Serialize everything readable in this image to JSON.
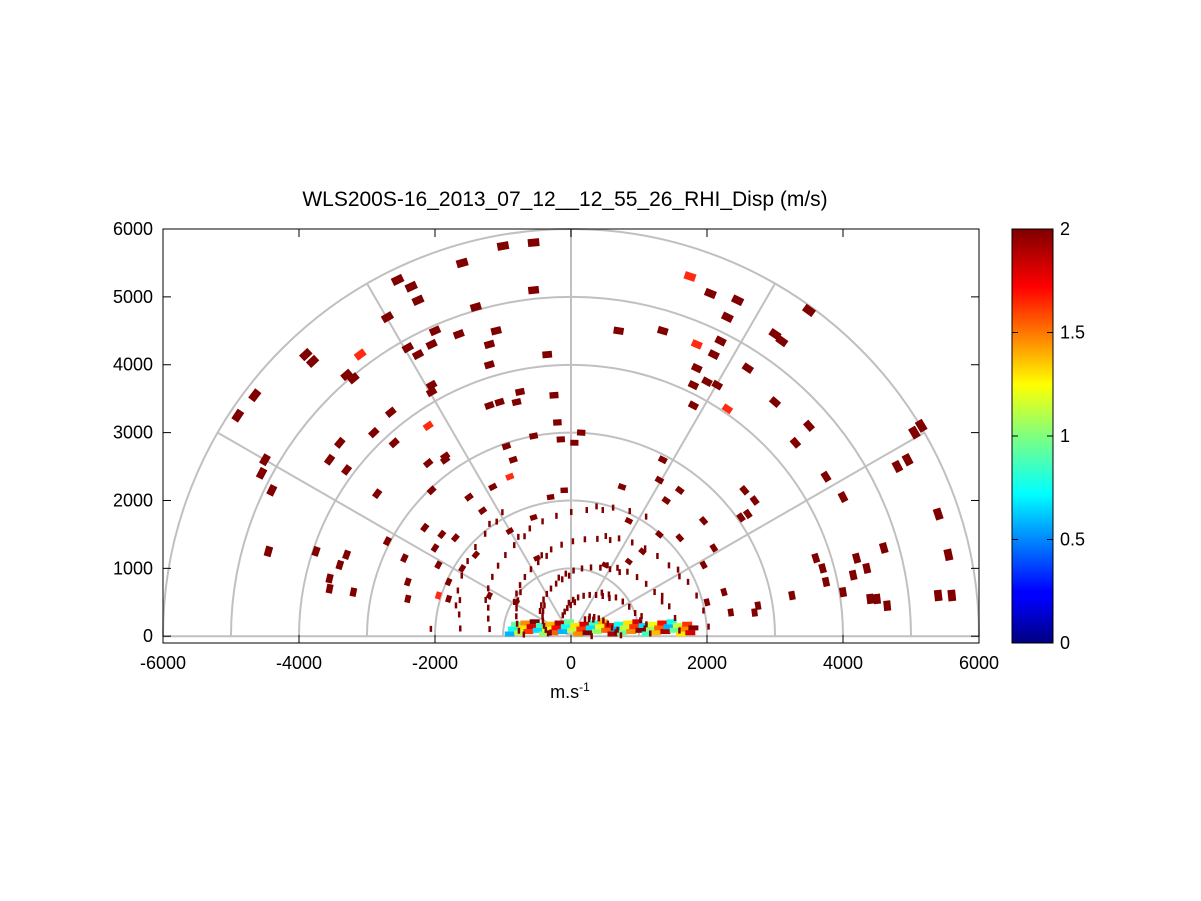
{
  "colors": {
    "grid": "#c0c0c0",
    "axes": "#000000",
    "dark_red": "#800000",
    "red": "#ff2a10"
  },
  "chart_data": {
    "type": "polar-rhi",
    "title": "WLS200S-16_2013_07_12__12_55_26_RHI_Disp (m/s)",
    "xlabel_base": "m.s",
    "xlabel_exp": "-1",
    "xlim": [
      -6000,
      6000
    ],
    "ylim": [
      -100,
      6000
    ],
    "xticks": [
      "-6000",
      "-4000",
      "-2000",
      "0",
      "2000",
      "4000",
      "6000"
    ],
    "yticks": [
      "0",
      "1000",
      "2000",
      "3000",
      "4000",
      "5000",
      "6000"
    ],
    "polar_grid_radii": [
      1000,
      2000,
      3000,
      4000,
      5000,
      6000
    ],
    "polar_grid_angles_deg": [
      0,
      30,
      60,
      90,
      120,
      150,
      180
    ],
    "colorbar": {
      "min": 0,
      "max": 2,
      "ticks": [
        "0",
        "0.5",
        "1",
        "1.5",
        "2"
      ],
      "colormap": "jet"
    },
    "ground_returns": {
      "x_range": [
        -900,
        1800
      ],
      "y_range": [
        40,
        220
      ],
      "values_range": [
        0.6,
        2.0
      ]
    },
    "points": [
      [
        -4900,
        3250,
        2
      ],
      [
        -4650,
        3550,
        2
      ],
      [
        -4500,
        2600,
        2
      ],
      [
        -4550,
        2400,
        2
      ],
      [
        -4400,
        2150,
        2
      ],
      [
        -4450,
        1250,
        2
      ],
      [
        -3900,
        4150,
        2
      ],
      [
        -3800,
        4050,
        2
      ],
      [
        -3300,
        3850,
        2
      ],
      [
        -3100,
        4150,
        1.8
      ],
      [
        -3200,
        3800,
        2
      ],
      [
        -3400,
        2850,
        2
      ],
      [
        -3550,
        2600,
        2
      ],
      [
        -3300,
        2450,
        2
      ],
      [
        -3750,
        1250,
        2
      ],
      [
        -3300,
        1200,
        2
      ],
      [
        -3400,
        1050,
        2
      ],
      [
        -3550,
        850,
        2
      ],
      [
        -3550,
        700,
        2
      ],
      [
        -3200,
        650,
        2
      ],
      [
        -2900,
        3000,
        2
      ],
      [
        -2650,
        3300,
        2
      ],
      [
        -2600,
        2850,
        2
      ],
      [
        -2850,
        2100,
        2
      ],
      [
        -2700,
        1400,
        2
      ],
      [
        -2450,
        1150,
        2
      ],
      [
        -2400,
        800,
        2
      ],
      [
        -2400,
        550,
        2
      ],
      [
        -2700,
        4700,
        2
      ],
      [
        -2550,
        5250,
        2
      ],
      [
        -2350,
        5150,
        2
      ],
      [
        -2250,
        4950,
        2
      ],
      [
        -2400,
        4250,
        2
      ],
      [
        -2250,
        4150,
        2
      ],
      [
        -2050,
        4300,
        2
      ],
      [
        -2000,
        4500,
        2
      ],
      [
        -2050,
        3700,
        2
      ],
      [
        -2050,
        3600,
        2
      ],
      [
        -2100,
        3100,
        1.8
      ],
      [
        -1850,
        2600,
        2
      ],
      [
        -2100,
        2550,
        2
      ],
      [
        -2050,
        2150,
        2
      ],
      [
        -2150,
        1600,
        2
      ],
      [
        -1900,
        1500,
        2
      ],
      [
        -2000,
        1300,
        2
      ],
      [
        -1950,
        1050,
        2
      ],
      [
        -1600,
        5500,
        2
      ],
      [
        -1400,
        4850,
        2
      ],
      [
        -1650,
        4450,
        2
      ],
      [
        -1100,
        4500,
        2
      ],
      [
        -1200,
        4300,
        2
      ],
      [
        -1200,
        4000,
        2
      ],
      [
        -1200,
        3400,
        2
      ],
      [
        -1050,
        3450,
        2
      ],
      [
        -1150,
        2200,
        2
      ],
      [
        -850,
        2600,
        2
      ],
      [
        -950,
        2800,
        2
      ],
      [
        -750,
        3600,
        2
      ],
      [
        -800,
        3450,
        2
      ],
      [
        -550,
        2950,
        2
      ],
      [
        -500,
        1150,
        2
      ],
      [
        -1400,
        1200,
        2
      ],
      [
        -900,
        1550,
        2
      ],
      [
        -550,
        1750,
        2
      ],
      [
        -1000,
        5750,
        2
      ],
      [
        -550,
        5800,
        2
      ],
      [
        -550,
        5100,
        2
      ],
      [
        -350,
        4150,
        2
      ],
      [
        -250,
        3550,
        2
      ],
      [
        -200,
        3150,
        2
      ],
      [
        -100,
        2150,
        2
      ],
      [
        -150,
        2900,
        2
      ],
      [
        -300,
        2050,
        2
      ],
      [
        -900,
        2350,
        1.8
      ],
      [
        -1300,
        1850,
        2
      ],
      [
        -1700,
        1450,
        2
      ],
      [
        -1850,
        2650,
        2
      ],
      [
        -1500,
        2050,
        2
      ],
      [
        -1600,
        1000,
        2
      ],
      [
        -1800,
        800,
        2
      ],
      [
        -1800,
        550,
        2
      ],
      [
        -1950,
        600,
        1.8
      ],
      [
        -1200,
        600,
        2
      ],
      [
        -800,
        500,
        2
      ],
      [
        50,
        2850,
        2
      ],
      [
        150,
        3000,
        2
      ],
      [
        700,
        4500,
        2
      ],
      [
        1350,
        4500,
        2
      ],
      [
        1850,
        4300,
        1.8
      ],
      [
        1850,
        3950,
        2
      ],
      [
        1750,
        5300,
        1.8
      ],
      [
        2050,
        5050,
        2
      ],
      [
        2300,
        4700,
        2
      ],
      [
        2450,
        4950,
        2
      ],
      [
        2200,
        4350,
        2
      ],
      [
        2100,
        4150,
        2
      ],
      [
        2150,
        3700,
        2
      ],
      [
        2000,
        3750,
        2
      ],
      [
        1800,
        3700,
        2
      ],
      [
        1800,
        3400,
        2
      ],
      [
        2300,
        3350,
        1.8
      ],
      [
        2600,
        3950,
        2
      ],
      [
        3000,
        4450,
        2
      ],
      [
        3100,
        4350,
        2
      ],
      [
        3000,
        3450,
        2
      ],
      [
        3500,
        4800,
        2
      ],
      [
        2600,
        1800,
        2
      ],
      [
        2500,
        1750,
        2
      ],
      [
        2550,
        2150,
        2
      ],
      [
        2700,
        2000,
        2
      ],
      [
        3300,
        2850,
        2
      ],
      [
        3750,
        2350,
        2
      ],
      [
        4000,
        2050,
        2
      ],
      [
        4200,
        1150,
        2
      ],
      [
        4350,
        1000,
        2
      ],
      [
        4500,
        550,
        2
      ],
      [
        4400,
        550,
        2
      ],
      [
        4000,
        650,
        2
      ],
      [
        4150,
        900,
        2
      ],
      [
        3700,
        1000,
        2
      ],
      [
        3750,
        800,
        2
      ],
      [
        3250,
        600,
        2
      ],
      [
        2750,
        450,
        2
      ],
      [
        2700,
        350,
        2
      ],
      [
        2350,
        350,
        2
      ],
      [
        2250,
        650,
        2
      ],
      [
        2000,
        500,
        2
      ],
      [
        1950,
        1700,
        2
      ],
      [
        2100,
        1300,
        2
      ],
      [
        1600,
        1450,
        2
      ],
      [
        1300,
        1500,
        2
      ],
      [
        1300,
        2300,
        2
      ],
      [
        1400,
        2000,
        2
      ],
      [
        1600,
        2150,
        2
      ],
      [
        850,
        1700,
        2
      ],
      [
        1050,
        1250,
        2
      ],
      [
        850,
        1100,
        2
      ],
      [
        500,
        1050,
        2
      ],
      [
        750,
        2200,
        2
      ],
      [
        1350,
        2600,
        2
      ],
      [
        3600,
        1150,
        2
      ],
      [
        4600,
        1300,
        2
      ],
      [
        4800,
        2500,
        2
      ],
      [
        4950,
        2600,
        2
      ],
      [
        5150,
        3100,
        2
      ],
      [
        5400,
        1800,
        2
      ],
      [
        5550,
        1200,
        2
      ],
      [
        5400,
        600,
        2
      ],
      [
        5600,
        600,
        2
      ],
      [
        4650,
        450,
        2
      ],
      [
        3500,
        3100,
        2
      ],
      [
        5050,
        3000,
        2
      ],
      [
        1950,
        1050,
        2
      ]
    ]
  }
}
